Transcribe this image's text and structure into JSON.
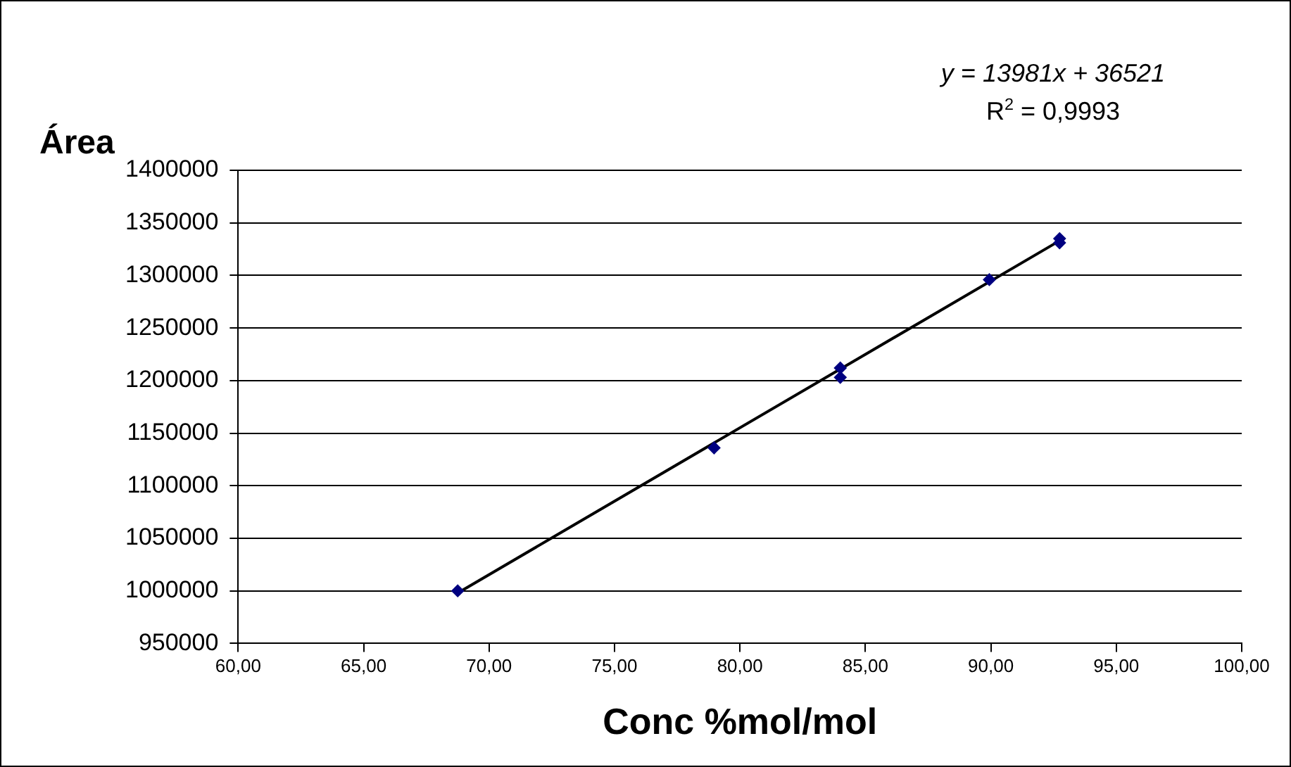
{
  "chart_data": {
    "type": "scatter",
    "xlabel": "Conc %mol/mol",
    "ylabel": "Área",
    "annotations": [
      "y = 13981x + 36521",
      "R$^{2}$ = 0,9993"
    ],
    "series": [
      {
        "color": "#000080",
        "x": [
          68.75,
          78.97,
          84.0,
          84.0,
          89.94,
          92.74,
          92.74
        ],
        "values": [
          1000000,
          1136000,
          1212000,
          1203000,
          1296000,
          1335000,
          1331000
        ]
      },
      {
        "type": "line",
        "color": "#000000",
        "marker": "none",
        "x": [
          68.75,
          92.74
        ],
        "values": [
          998000,
          1333000
        ]
      }
    ],
    "xlim": [
      60,
      100
    ],
    "xticks": [
      {
        "value": 60,
        "label": "60,00"
      },
      {
        "value": 65,
        "label": "65,00"
      },
      {
        "value": 70,
        "label": "70,00"
      },
      {
        "value": 75,
        "label": "75,00"
      },
      {
        "value": 80,
        "label": "80,00"
      },
      {
        "value": 85,
        "label": "85,00"
      },
      {
        "value": 90,
        "label": "90,00"
      },
      {
        "value": 95,
        "label": "95,00"
      },
      {
        "value": 100,
        "label": "100,00"
      }
    ],
    "ylim": [
      950000,
      1400000
    ],
    "yticks": [
      950000,
      1000000,
      1050000,
      1100000,
      1150000,
      1200000,
      1250000,
      1300000,
      1350000,
      1400000
    ],
    "grid": "y",
    "legend": false,
    "marker": "diamond",
    "line_style": "solid"
  }
}
